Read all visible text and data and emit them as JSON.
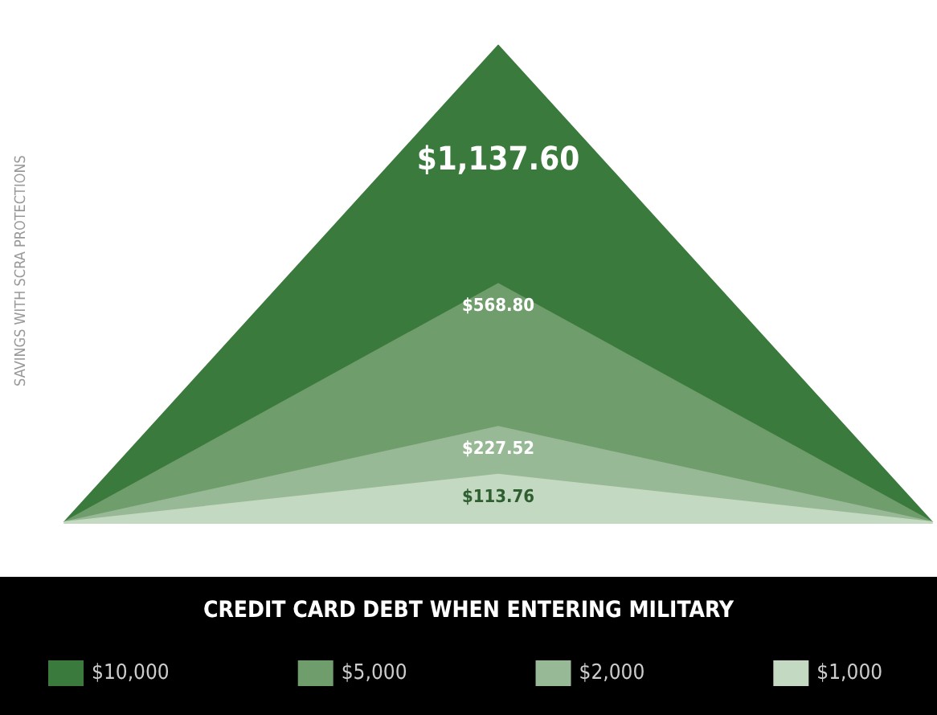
{
  "chart_data": {
    "type": "area",
    "ylabel": "SAVINGS WITH SCRA PROTECTIONS",
    "legend_title": "CREDIT CARD DEBT WHEN ENTERING MILITARY",
    "legend": "bottom",
    "grid": false,
    "marker": "none",
    "categories": [
      null,
      null,
      null
    ],
    "series": [
      {
        "name": "$10,000",
        "color": "#3b7a3d",
        "values": [
          0,
          1137.6,
          0
        ],
        "value_labels": [
          null,
          "$1,137.60",
          null
        ]
      },
      {
        "name": "$5,000",
        "color": "#6f9d6c",
        "values": [
          0,
          568.8,
          0
        ],
        "value_labels": [
          null,
          "$568.80",
          null
        ]
      },
      {
        "name": "$2,000",
        "color": "#98b995",
        "values": [
          0,
          227.52,
          0
        ],
        "value_labels": [
          null,
          "$227.52",
          null
        ]
      },
      {
        "name": "$1,000",
        "color": "#c4d9c1",
        "values": [
          0,
          113.76,
          0
        ],
        "value_labels": [
          null,
          "$113.76",
          null
        ]
      }
    ]
  }
}
